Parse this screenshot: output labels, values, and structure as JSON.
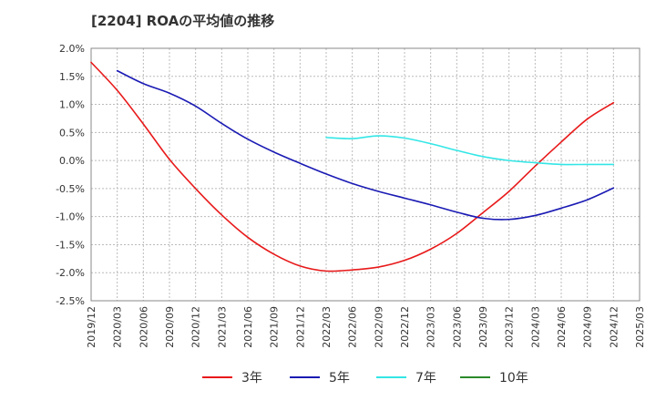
{
  "title": "[2204]  ROAの平均値の推移",
  "chart_data": {
    "type": "line",
    "title": "[2204]  ROAの平均値の推移",
    "xlabel": "",
    "ylabel": "",
    "categories": [
      "2019/12",
      "2020/03",
      "2020/06",
      "2020/09",
      "2020/12",
      "2021/03",
      "2021/06",
      "2021/09",
      "2021/12",
      "2022/03",
      "2022/06",
      "2022/09",
      "2022/12",
      "2023/03",
      "2023/06",
      "2023/09",
      "2023/12",
      "2024/03",
      "2024/06",
      "2024/09",
      "2024/12",
      "2025/03"
    ],
    "y_ticks": [
      "2.0%",
      "1.5%",
      "1.0%",
      "0.5%",
      "0.0%",
      "-0.5%",
      "-1.0%",
      "-1.5%",
      "-2.0%",
      "-2.5%"
    ],
    "ylim": [
      -2.5,
      2.0
    ],
    "grid": true,
    "legend_position": "bottom",
    "series": [
      {
        "name": "3年",
        "color": "#e8191a",
        "values": [
          1.75,
          1.25,
          0.65,
          0.02,
          -0.5,
          -0.97,
          -1.37,
          -1.67,
          -1.88,
          -1.97,
          -1.95,
          -1.9,
          -1.78,
          -1.58,
          -1.3,
          -0.93,
          -0.55,
          -0.1,
          0.33,
          0.74,
          1.03,
          null
        ]
      },
      {
        "name": "5年",
        "color": "#1a1ab4",
        "values": [
          null,
          1.6,
          1.37,
          1.2,
          0.97,
          0.66,
          0.38,
          0.15,
          -0.05,
          -0.24,
          -0.41,
          -0.55,
          -0.67,
          -0.79,
          -0.92,
          -1.03,
          -1.05,
          -0.98,
          -0.85,
          -0.7,
          -0.49,
          null
        ]
      },
      {
        "name": "7年",
        "color": "#33e6e6",
        "values": [
          null,
          null,
          null,
          null,
          null,
          null,
          null,
          null,
          null,
          0.41,
          0.39,
          0.44,
          0.4,
          0.3,
          0.18,
          0.07,
          0.0,
          -0.04,
          -0.07,
          -0.07,
          -0.07,
          null
        ]
      },
      {
        "name": "10年",
        "color": "#2a8a2a",
        "values": [
          null,
          null,
          null,
          null,
          null,
          null,
          null,
          null,
          null,
          null,
          null,
          null,
          null,
          null,
          null,
          null,
          null,
          null,
          null,
          null,
          null,
          null
        ]
      }
    ]
  }
}
